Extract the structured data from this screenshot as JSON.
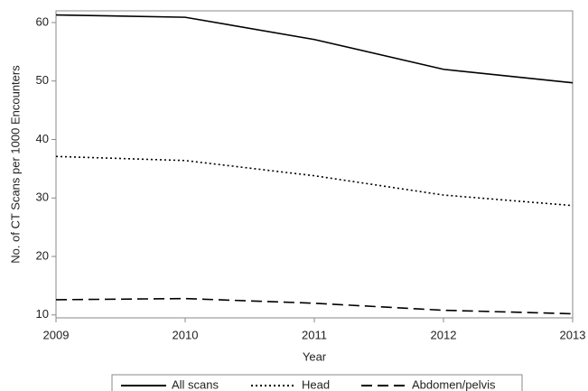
{
  "chart_data": {
    "type": "line",
    "x": [
      2009,
      2010,
      2011,
      2012,
      2013
    ],
    "xlabel": "Year",
    "ylabel": "No. of CT Scans per 1000 Encounters",
    "series": [
      {
        "name": "All scans",
        "color": "#000000",
        "dash": "solid",
        "values": [
          61.3,
          60.9,
          57.1,
          52.0,
          49.7
        ]
      },
      {
        "name": "Head",
        "color": "#000000",
        "dash": "dotted",
        "values": [
          37.1,
          36.4,
          33.8,
          30.5,
          28.7
        ]
      },
      {
        "name": "Abdomen/pelvis",
        "color": "#000000",
        "dash": "dashed",
        "values": [
          12.6,
          12.8,
          12.0,
          10.8,
          10.2
        ]
      }
    ],
    "xlim": [
      2009,
      2013
    ],
    "xticks": [
      2009,
      2010,
      2011,
      2012,
      2013
    ],
    "ylim": [
      9.5,
      62
    ],
    "yticks": [
      10,
      20,
      30,
      40,
      50,
      60
    ],
    "grid": false,
    "legend": "bottom"
  }
}
